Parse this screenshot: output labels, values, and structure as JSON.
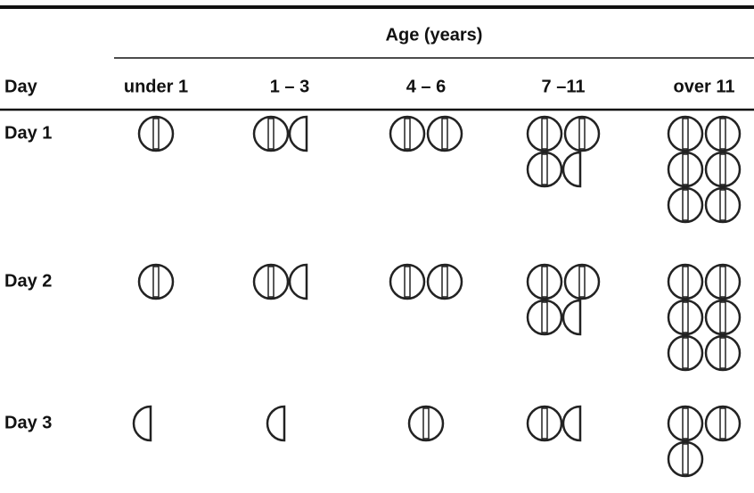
{
  "table": {
    "header_group": "Age (years)",
    "columns": [
      "Day",
      "under 1",
      "1 – 3",
      "4 – 6",
      "7 –11",
      "over 11"
    ],
    "rows": [
      {
        "label": "Day 1",
        "doses": [
          1,
          1.5,
          2,
          3.5,
          6
        ]
      },
      {
        "label": "Day 2",
        "doses": [
          1,
          1.5,
          2,
          3.5,
          6
        ]
      },
      {
        "label": "Day 3",
        "doses": [
          0.5,
          0.5,
          1,
          1.5,
          3
        ]
      }
    ]
  }
}
